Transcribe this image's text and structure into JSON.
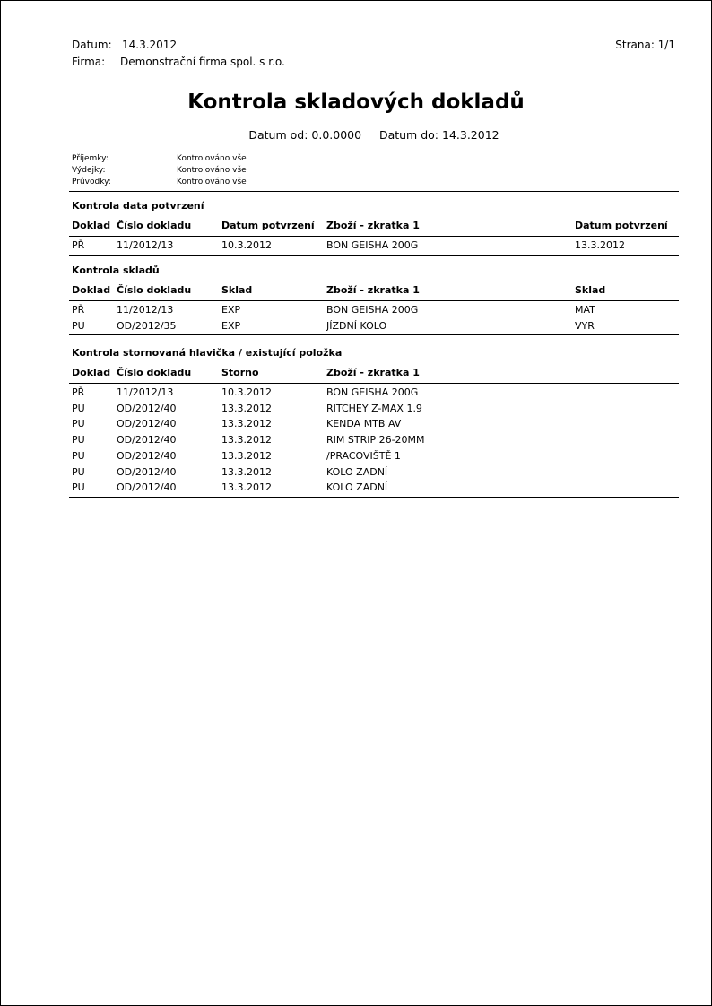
{
  "header": {
    "date_label": "Datum:",
    "date": "14.3.2012",
    "company_label": "Firma:",
    "company": "Demonstrační firma spol. s r.o.",
    "page": "Strana: 1/1"
  },
  "title": "Kontrola skladových dokladů",
  "subtitle": {
    "from_label": "Datum od:",
    "from": "0.0.0000",
    "to_label": "Datum do:",
    "to": "14.3.2012"
  },
  "filters": [
    {
      "label": "Příjemky:",
      "value": "Kontrolováno vše"
    },
    {
      "label": "Výdejky:",
      "value": "Kontrolováno vše"
    },
    {
      "label": "Průvodky:",
      "value": "Kontrolováno vše"
    }
  ],
  "sections": [
    {
      "title": "Kontrola data potvrzení",
      "columns": [
        "Doklad",
        "Číslo dokladu",
        "Datum potvrzení",
        "Zboží - zkratka 1",
        "Datum potvrzení"
      ],
      "rows": [
        [
          "PŘ",
          "11/2012/13",
          "10.3.2012",
          "BON GEISHA 200G",
          "13.3.2012"
        ]
      ]
    },
    {
      "title": "Kontrola skladů",
      "columns": [
        "Doklad",
        "Číslo dokladu",
        "Sklad",
        "Zboží - zkratka 1",
        "Sklad"
      ],
      "rows": [
        [
          "PŘ",
          "11/2012/13",
          "EXP",
          "BON GEISHA 200G",
          "MAT"
        ],
        [
          "PU",
          "OD/2012/35",
          "EXP",
          "JÍZDNÍ KOLO",
          "VYR"
        ]
      ]
    },
    {
      "title": "Kontrola stornovaná hlavička / existující položka",
      "columns": [
        "Doklad",
        "Číslo dokladu",
        "Storno",
        "Zboží - zkratka 1"
      ],
      "rows": [
        [
          "PŘ",
          "11/2012/13",
          "10.3.2012",
          "BON GEISHA 200G"
        ],
        [
          "PU",
          "OD/2012/40",
          "13.3.2012",
          "RITCHEY Z-MAX 1.9"
        ],
        [
          "PU",
          "OD/2012/40",
          "13.3.2012",
          "KENDA MTB AV"
        ],
        [
          "PU",
          "OD/2012/40",
          "13.3.2012",
          "RIM STRIP 26-20MM"
        ],
        [
          "PU",
          "OD/2012/40",
          "13.3.2012",
          "/PRACOVIŠTĚ 1"
        ],
        [
          "PU",
          "OD/2012/40",
          "13.3.2012",
          "KOLO ZADNÍ"
        ],
        [
          "PU",
          "OD/2012/40",
          "13.3.2012",
          "KOLO ZADNÍ"
        ]
      ]
    }
  ]
}
